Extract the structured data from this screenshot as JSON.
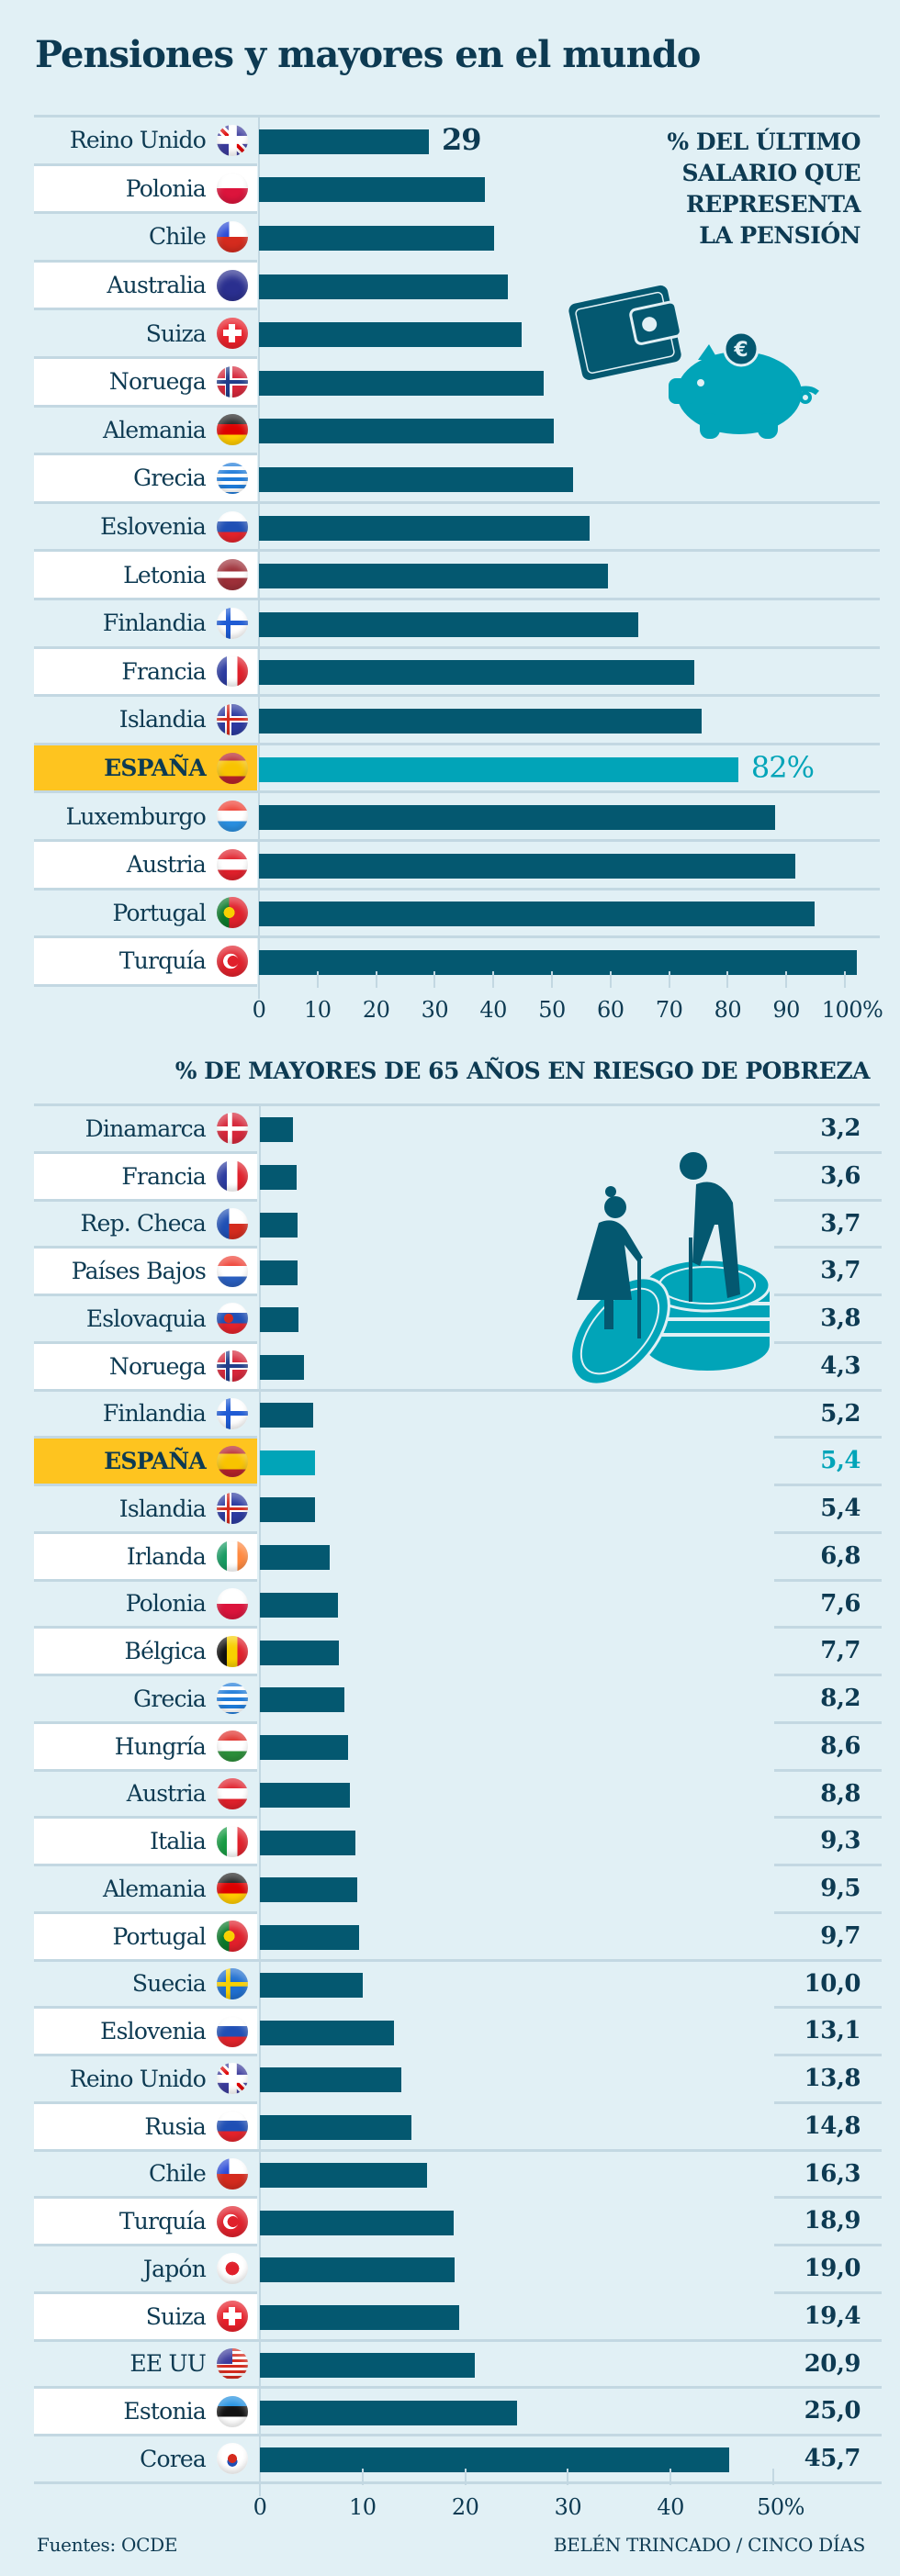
{
  "title": "Pensiones y mayores en el mundo",
  "colors": {
    "bar": "#045870",
    "highlight_bar": "#01a4b8",
    "highlight_label": "#fec41f",
    "text": "#0d3a52",
    "background": "#e1f0f5"
  },
  "chart_data": [
    {
      "type": "bar",
      "orientation": "horizontal",
      "title": "% DEL ÚLTIMO SALARIO QUE REPRESENTA LA PENSIÓN",
      "title_lines": [
        "% DEL ÚLTIMO",
        "SALARIO QUE",
        "REPRESENTA",
        "LA PENSIÓN"
      ],
      "xlim": [
        0,
        100
      ],
      "ticks": [
        "0",
        "10",
        "20",
        "30",
        "40",
        "50",
        "60",
        "70",
        "80",
        "90",
        "100%"
      ],
      "tick_values": [
        0,
        10,
        20,
        30,
        40,
        50,
        60,
        70,
        80,
        90,
        100
      ],
      "categories": [
        "Reino Unido",
        "Polonia",
        "Chile",
        "Australia",
        "Suiza",
        "Noruega",
        "Alemania",
        "Grecia",
        "Eslovenia",
        "Letonia",
        "Finlandia",
        "Francia",
        "Islandia",
        "ESPAÑA",
        "Luxemburgo",
        "Austria",
        "Portugal",
        "Turquía"
      ],
      "flags": [
        "uk",
        "poland",
        "chile",
        "australia",
        "switzerland",
        "norway",
        "germany",
        "greece",
        "slovenia",
        "latvia",
        "finland",
        "france",
        "iceland",
        "spain",
        "luxembourg",
        "austria",
        "portugal",
        "turkey"
      ],
      "values": [
        29,
        38.6,
        40.1,
        42.5,
        44.8,
        48.6,
        50.3,
        53.6,
        56.5,
        59.5,
        64.7,
        74.3,
        75.5,
        81.8,
        88.1,
        91.6,
        94.9,
        102.0
      ],
      "highlight": "ESPAÑA",
      "data_labels": {
        "Reino Unido": "29",
        "ESPAÑA": "82%"
      },
      "illustrations": [
        "wallet-icon",
        "piggy-bank-icon"
      ]
    },
    {
      "type": "bar",
      "orientation": "horizontal",
      "title": "% DE MAYORES DE 65 AÑOS EN RIESGO DE POBREZA",
      "xlim": [
        0,
        50
      ],
      "ticks": [
        "0",
        "10",
        "20",
        "30",
        "40",
        "50%"
      ],
      "tick_values": [
        0,
        10,
        20,
        30,
        40,
        50
      ],
      "categories": [
        "Dinamarca",
        "Francia",
        "Rep. Checa",
        "Países Bajos",
        "Eslovaquia",
        "Noruega",
        "Finlandia",
        "ESPAÑA",
        "Islandia",
        "Irlanda",
        "Polonia",
        "Bélgica",
        "Grecia",
        "Hungría",
        "Austria",
        "Italia",
        "Alemania",
        "Portugal",
        "Suecia",
        "Eslovenia",
        "Reino Unido",
        "Rusia",
        "Chile",
        "Turquía",
        "Japón",
        "Suiza",
        "EE UU",
        "Estonia",
        "Corea"
      ],
      "flags": [
        "denmark",
        "france",
        "czech",
        "netherlands",
        "slovakia",
        "norway",
        "finland",
        "spain",
        "iceland",
        "ireland",
        "poland",
        "belgium",
        "greece",
        "hungary",
        "austria",
        "italy",
        "germany",
        "portugal",
        "sweden",
        "slovenia",
        "uk",
        "russia",
        "chile",
        "turkey",
        "japan",
        "switzerland",
        "usa",
        "estonia",
        "korea"
      ],
      "values": [
        3.2,
        3.6,
        3.7,
        3.7,
        3.8,
        4.3,
        5.2,
        5.4,
        5.4,
        6.8,
        7.6,
        7.7,
        8.2,
        8.6,
        8.8,
        9.3,
        9.5,
        9.7,
        10.0,
        13.1,
        13.8,
        14.8,
        16.3,
        18.9,
        19.0,
        19.4,
        20.9,
        25.0,
        45.7
      ],
      "value_labels": [
        "3,2",
        "3,6",
        "3,7",
        "3,7",
        "3,8",
        "4,3",
        "5,2",
        "5,4",
        "5,4",
        "6,8",
        "7,6",
        "7,7",
        "8,2",
        "8,6",
        "8,8",
        "9,3",
        "9,5",
        "9,7",
        "10,0",
        "13,1",
        "13,8",
        "14,8",
        "16,3",
        "18,9",
        "19,0",
        "19,4",
        "20,9",
        "25,0",
        "45,7"
      ],
      "highlight": "ESPAÑA",
      "illustrations": [
        "elderly-couple-on-coins-icon"
      ]
    }
  ],
  "footer": {
    "source": "Fuentes: OCDE",
    "credit": "BELÉN TRINCADO / CINCO DÍAS"
  }
}
